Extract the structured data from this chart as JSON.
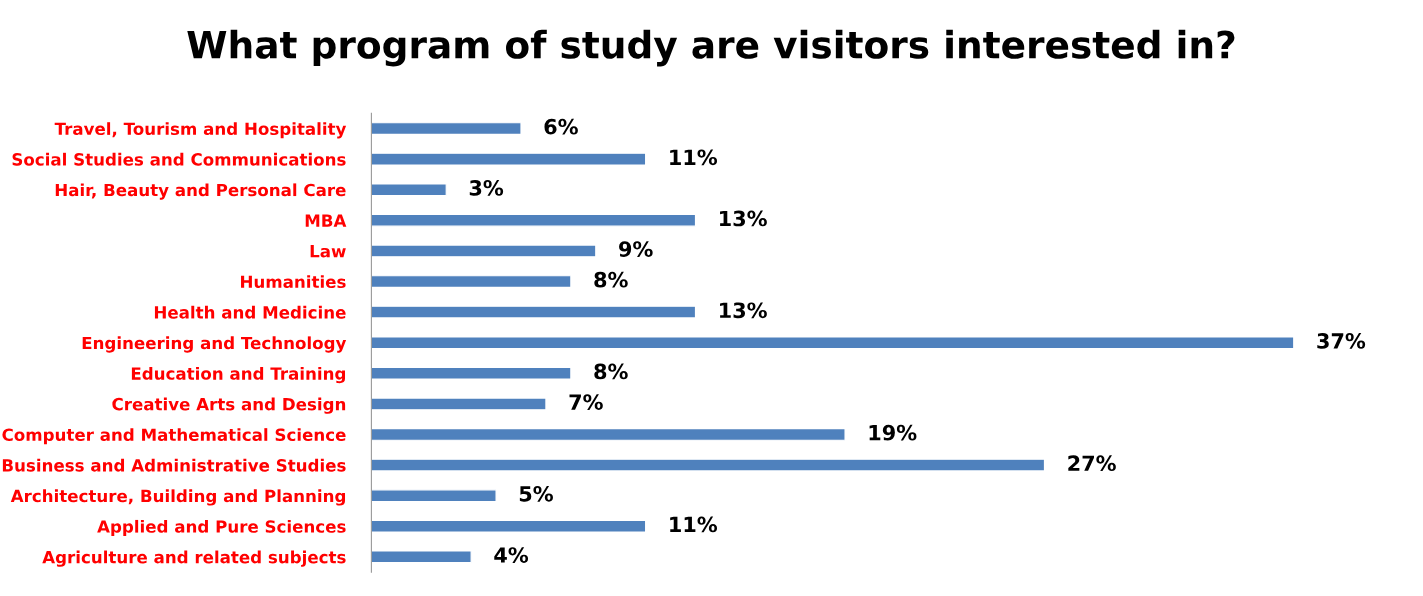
{
  "chart_data": {
    "type": "bar",
    "orientation": "horizontal",
    "title": "What program of study are visitors interested in?",
    "categories": [
      "Travel, Tourism and Hospitality",
      "Social Studies and Communications",
      "Hair, Beauty and Personal Care",
      "MBA",
      "Law",
      "Humanities",
      "Health and Medicine",
      "Engineering and Technology",
      "Education and Training",
      "Creative Arts and Design",
      "Computer and Mathematical Science",
      "Business and Administrative Studies",
      "Architecture, Building and Planning",
      "Applied and Pure Sciences",
      "Agriculture and related subjects"
    ],
    "values": [
      6,
      11,
      3,
      13,
      9,
      8,
      13,
      37,
      8,
      7,
      19,
      27,
      5,
      11,
      4
    ],
    "value_labels": [
      "6%",
      "11%",
      "3%",
      "13%",
      "9%",
      "8%",
      "13%",
      "37%",
      "8%",
      "7%",
      "19%",
      "27%",
      "5%",
      "11%",
      "4%"
    ],
    "color": "#4f81bd",
    "grid": false,
    "legend": false
  }
}
